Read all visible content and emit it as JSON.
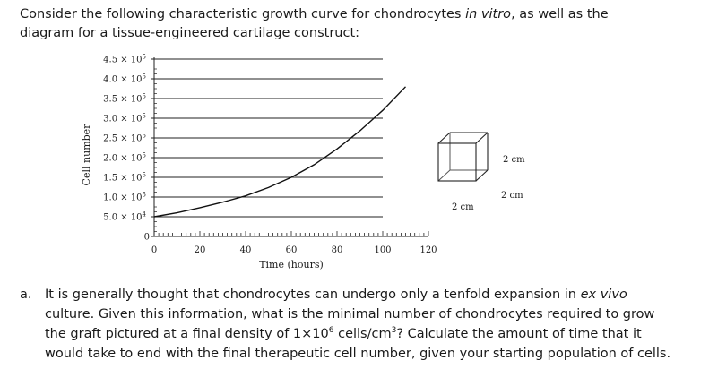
{
  "intro": {
    "part1": "Consider the following characteristic growth curve for chondrocytes ",
    "part2_em": "in vitro",
    "part3": ", as well as the diagram for a tissue-engineered cartilage construct:"
  },
  "chart_data": {
    "type": "line",
    "title": "",
    "xlabel": "Time (hours)",
    "ylabel": "Cell number",
    "xlim": [
      0,
      120
    ],
    "ylim": [
      0,
      450000
    ],
    "x_ticks": [
      0,
      20,
      40,
      60,
      80,
      100,
      120
    ],
    "y_ticks": [
      {
        "value": 0,
        "label": "0"
      },
      {
        "value": 50000,
        "label": "5.0 × 10",
        "exp": "4"
      },
      {
        "value": 100000,
        "label": "1.0 × 10",
        "exp": "5"
      },
      {
        "value": 150000,
        "label": "1.5 × 10",
        "exp": "5"
      },
      {
        "value": 200000,
        "label": "2.0 × 10",
        "exp": "5"
      },
      {
        "value": 250000,
        "label": "2.5 × 10",
        "exp": "5"
      },
      {
        "value": 300000,
        "label": "3.0 × 10",
        "exp": "5"
      },
      {
        "value": 350000,
        "label": "3.5 × 10",
        "exp": "5"
      },
      {
        "value": 400000,
        "label": "4.0 × 10",
        "exp": "5"
      },
      {
        "value": 450000,
        "label": "4.5 × 10",
        "exp": "5"
      }
    ],
    "grid": true,
    "series": [
      {
        "x": [
          0,
          10,
          20,
          30,
          40,
          50,
          60,
          70,
          80,
          90,
          100,
          110
        ],
        "y": [
          50000,
          60000,
          73000,
          87000,
          103000,
          124000,
          150000,
          182000,
          222000,
          268000,
          320000,
          380000
        ]
      }
    ]
  },
  "cube": {
    "labels": [
      "2 cm",
      "2 cm",
      "2 cm"
    ]
  },
  "question": {
    "label": "a.",
    "t1": "It is generally thought that chondrocytes can undergo only a tenfold expansion in ",
    "t2_em": "ex vivo",
    "t3": " culture. Given this information, what is the minimal number of chondrocytes required to grow the graft pictured at a final density of 1×10",
    "t3_exp": "6",
    "t4": " cells/cm",
    "t4_exp": "3",
    "t5": "? Calculate the amount of time that it would take to end with the final therapeutic cell number, given your starting population of cells."
  }
}
